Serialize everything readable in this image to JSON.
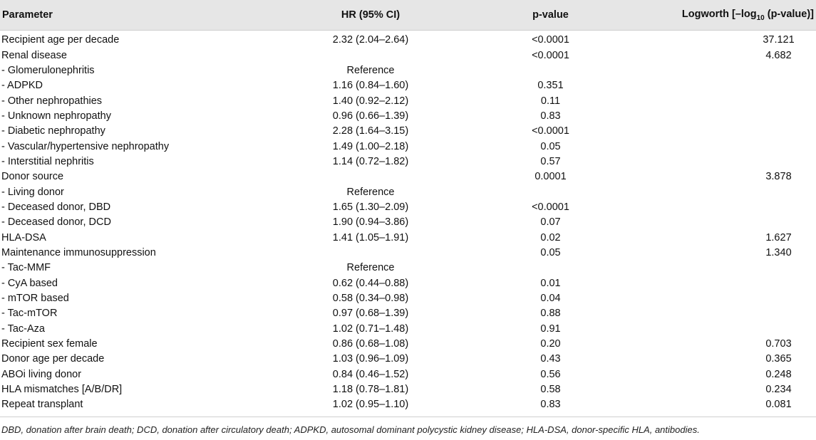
{
  "header": {
    "parameter": "Parameter",
    "hr": "HR (95% CI)",
    "pvalue": "p-value",
    "logworth_prefix": "Logworth [–log",
    "logworth_sub": "10",
    "logworth_suffix": " (p-value)]"
  },
  "rows": [
    {
      "parameter": "Recipient age per decade",
      "hr": "2.32 (2.04–2.64)",
      "p": "<0.0001",
      "logworth": "37.121"
    },
    {
      "parameter": "Renal disease",
      "hr": "",
      "p": "<0.0001",
      "logworth": "4.682"
    },
    {
      "parameter": "- Glomerulonephritis",
      "hr": "Reference",
      "p": "",
      "logworth": ""
    },
    {
      "parameter": "- ADPKD",
      "hr": "1.16 (0.84–1.60)",
      "p": "0.351",
      "logworth": ""
    },
    {
      "parameter": "- Other nephropathies",
      "hr": "1.40 (0.92–2.12)",
      "p": "0.11",
      "logworth": ""
    },
    {
      "parameter": "- Unknown nephropathy",
      "hr": "0.96 (0.66–1.39)",
      "p": "0.83",
      "logworth": ""
    },
    {
      "parameter": "- Diabetic nephropathy",
      "hr": "2.28 (1.64–3.15)",
      "p": "<0.0001",
      "logworth": ""
    },
    {
      "parameter": "- Vascular/hypertensive nephropathy",
      "hr": "1.49 (1.00–2.18)",
      "p": "0.05",
      "logworth": ""
    },
    {
      "parameter": "- Interstitial nephritis",
      "hr": "1.14 (0.72–1.82)",
      "p": "0.57",
      "logworth": ""
    },
    {
      "parameter": "Donor source",
      "hr": "",
      "p": "0.0001",
      "logworth": "3.878"
    },
    {
      "parameter": "- Living donor",
      "hr": "Reference",
      "p": "",
      "logworth": ""
    },
    {
      "parameter": "- Deceased donor, DBD",
      "hr": "1.65 (1.30–2.09)",
      "p": "<0.0001",
      "logworth": ""
    },
    {
      "parameter": "- Deceased donor, DCD",
      "hr": "1.90 (0.94–3.86)",
      "p": "0.07",
      "logworth": ""
    },
    {
      "parameter": "HLA-DSA",
      "hr": "1.41 (1.05–1.91)",
      "p": "0.02",
      "logworth": "1.627"
    },
    {
      "parameter": "Maintenance immunosuppression",
      "hr": "",
      "p": "0.05",
      "logworth": "1.340"
    },
    {
      "parameter": "- Tac-MMF",
      "hr": "Reference",
      "p": "",
      "logworth": ""
    },
    {
      "parameter": "- CyA based",
      "hr": "0.62 (0.44–0.88)",
      "p": "0.01",
      "logworth": ""
    },
    {
      "parameter": "- mTOR based",
      "hr": "0.58 (0.34–0.98)",
      "p": "0.04",
      "logworth": ""
    },
    {
      "parameter": "- Tac-mTOR",
      "hr": "0.97 (0.68–1.39)",
      "p": "0.88",
      "logworth": ""
    },
    {
      "parameter": "- Tac-Aza",
      "hr": "1.02 (0.71–1.48)",
      "p": "0.91",
      "logworth": ""
    },
    {
      "parameter": "Recipient sex female",
      "hr": "0.86 (0.68–1.08)",
      "p": "0.20",
      "logworth": "0.703"
    },
    {
      "parameter": "Donor age per decade",
      "hr": "1.03 (0.96–1.09)",
      "p": "0.43",
      "logworth": "0.365"
    },
    {
      "parameter": "ABOi living donor",
      "hr": "0.84 (0.46–1.52)",
      "p": "0.56",
      "logworth": "0.248"
    },
    {
      "parameter": "HLA mismatches [A/B/DR]",
      "hr": "1.18 (0.78–1.81)",
      "p": "0.58",
      "logworth": "0.234"
    },
    {
      "parameter": "Repeat transplant",
      "hr": "1.02 (0.95–1.10)",
      "p": "0.83",
      "logworth": "0.081"
    }
  ],
  "footnote": "DBD, donation after brain death; DCD, donation after circulatory death; ADPKD, autosomal dominant polycystic kidney disease; HLA-DSA, donor-specific HLA, antibodies."
}
